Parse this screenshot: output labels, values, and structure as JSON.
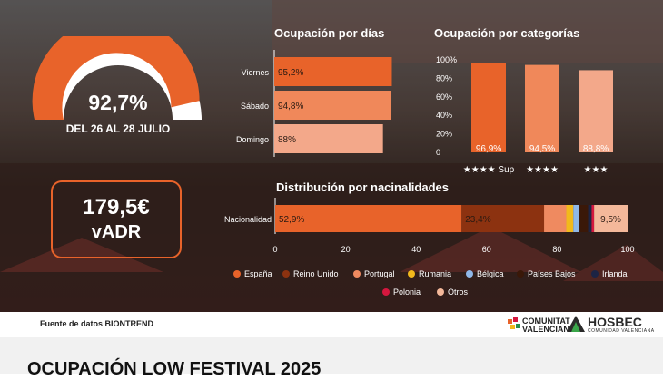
{
  "gauge": {
    "value": "92,7%",
    "fraction": 0.927,
    "subtitle": "DEL 26 AL 28 JULIO"
  },
  "adr": {
    "value": "179,5€",
    "label": "vADR"
  },
  "chart_data": [
    {
      "type": "bar",
      "orientation": "horizontal",
      "title": "Ocupación por días",
      "categories": [
        "Viernes",
        "Sábado",
        "Domingo"
      ],
      "values": [
        95.2,
        94.8,
        88
      ],
      "value_labels": [
        "95,2%",
        "94,8%",
        "88%"
      ],
      "colors": [
        "#e8632a",
        "#f0885a",
        "#f3a88a"
      ]
    },
    {
      "type": "bar",
      "title": "Ocupación por categorías",
      "categories": [
        "★★★★ Sup",
        "★★★★",
        "★★★"
      ],
      "values": [
        96.9,
        94.5,
        88.8
      ],
      "value_labels": [
        "96,9%",
        "94,5%",
        "88,8%"
      ],
      "ylim": [
        0,
        100
      ],
      "yticks": [
        "0",
        "20%",
        "40%",
        "60%",
        "80%",
        "100%"
      ],
      "grid": false,
      "colors": [
        "#e8632a",
        "#f0885a",
        "#f3a88a"
      ]
    },
    {
      "type": "bar",
      "orientation": "horizontal",
      "stacked": true,
      "title": "Distribución por nacinalidades",
      "categories": [
        "Nacionalidad"
      ],
      "xlim": [
        0,
        100
      ],
      "xticks": [
        "0",
        "20",
        "40",
        "60",
        "80",
        "100"
      ],
      "legend_position": "bottom",
      "series": [
        {
          "name": "España",
          "value": 52.9,
          "label": "52,9%",
          "color": "#e8632a"
        },
        {
          "name": "Reino Unido",
          "value": 23.4,
          "label": "23,4%",
          "color": "#8c3210"
        },
        {
          "name": "Portugal",
          "value": 6.3,
          "label": "",
          "color": "#ef8a60"
        },
        {
          "name": "Rumania",
          "value": 2.0,
          "label": "",
          "color": "#f2b91c"
        },
        {
          "name": "Bélgica",
          "value": 1.7,
          "label": "",
          "color": "#8fb8e8"
        },
        {
          "name": "Países Bajos",
          "value": 2.5,
          "label": "",
          "color": "#3a1808"
        },
        {
          "name": "Irlanda",
          "value": 1.0,
          "label": "",
          "color": "#1c2444"
        },
        {
          "name": "Polonia",
          "value": 0.7,
          "label": "",
          "color": "#d4173e"
        },
        {
          "name": "Otros",
          "value": 9.5,
          "label": "9,5%",
          "color": "#f4b89a"
        }
      ]
    }
  ],
  "footer": {
    "source": "Fuente de datos BIONTREND",
    "cv_line1": "COMUNITAT",
    "cv_line2": "VALENCIANA",
    "hosbec": "HOSBEC",
    "hosbec_sub": "COMUNIDAD VALENCIANA"
  },
  "bottom_title": "OCUPACIÓN LOW FESTIVAL 2025"
}
